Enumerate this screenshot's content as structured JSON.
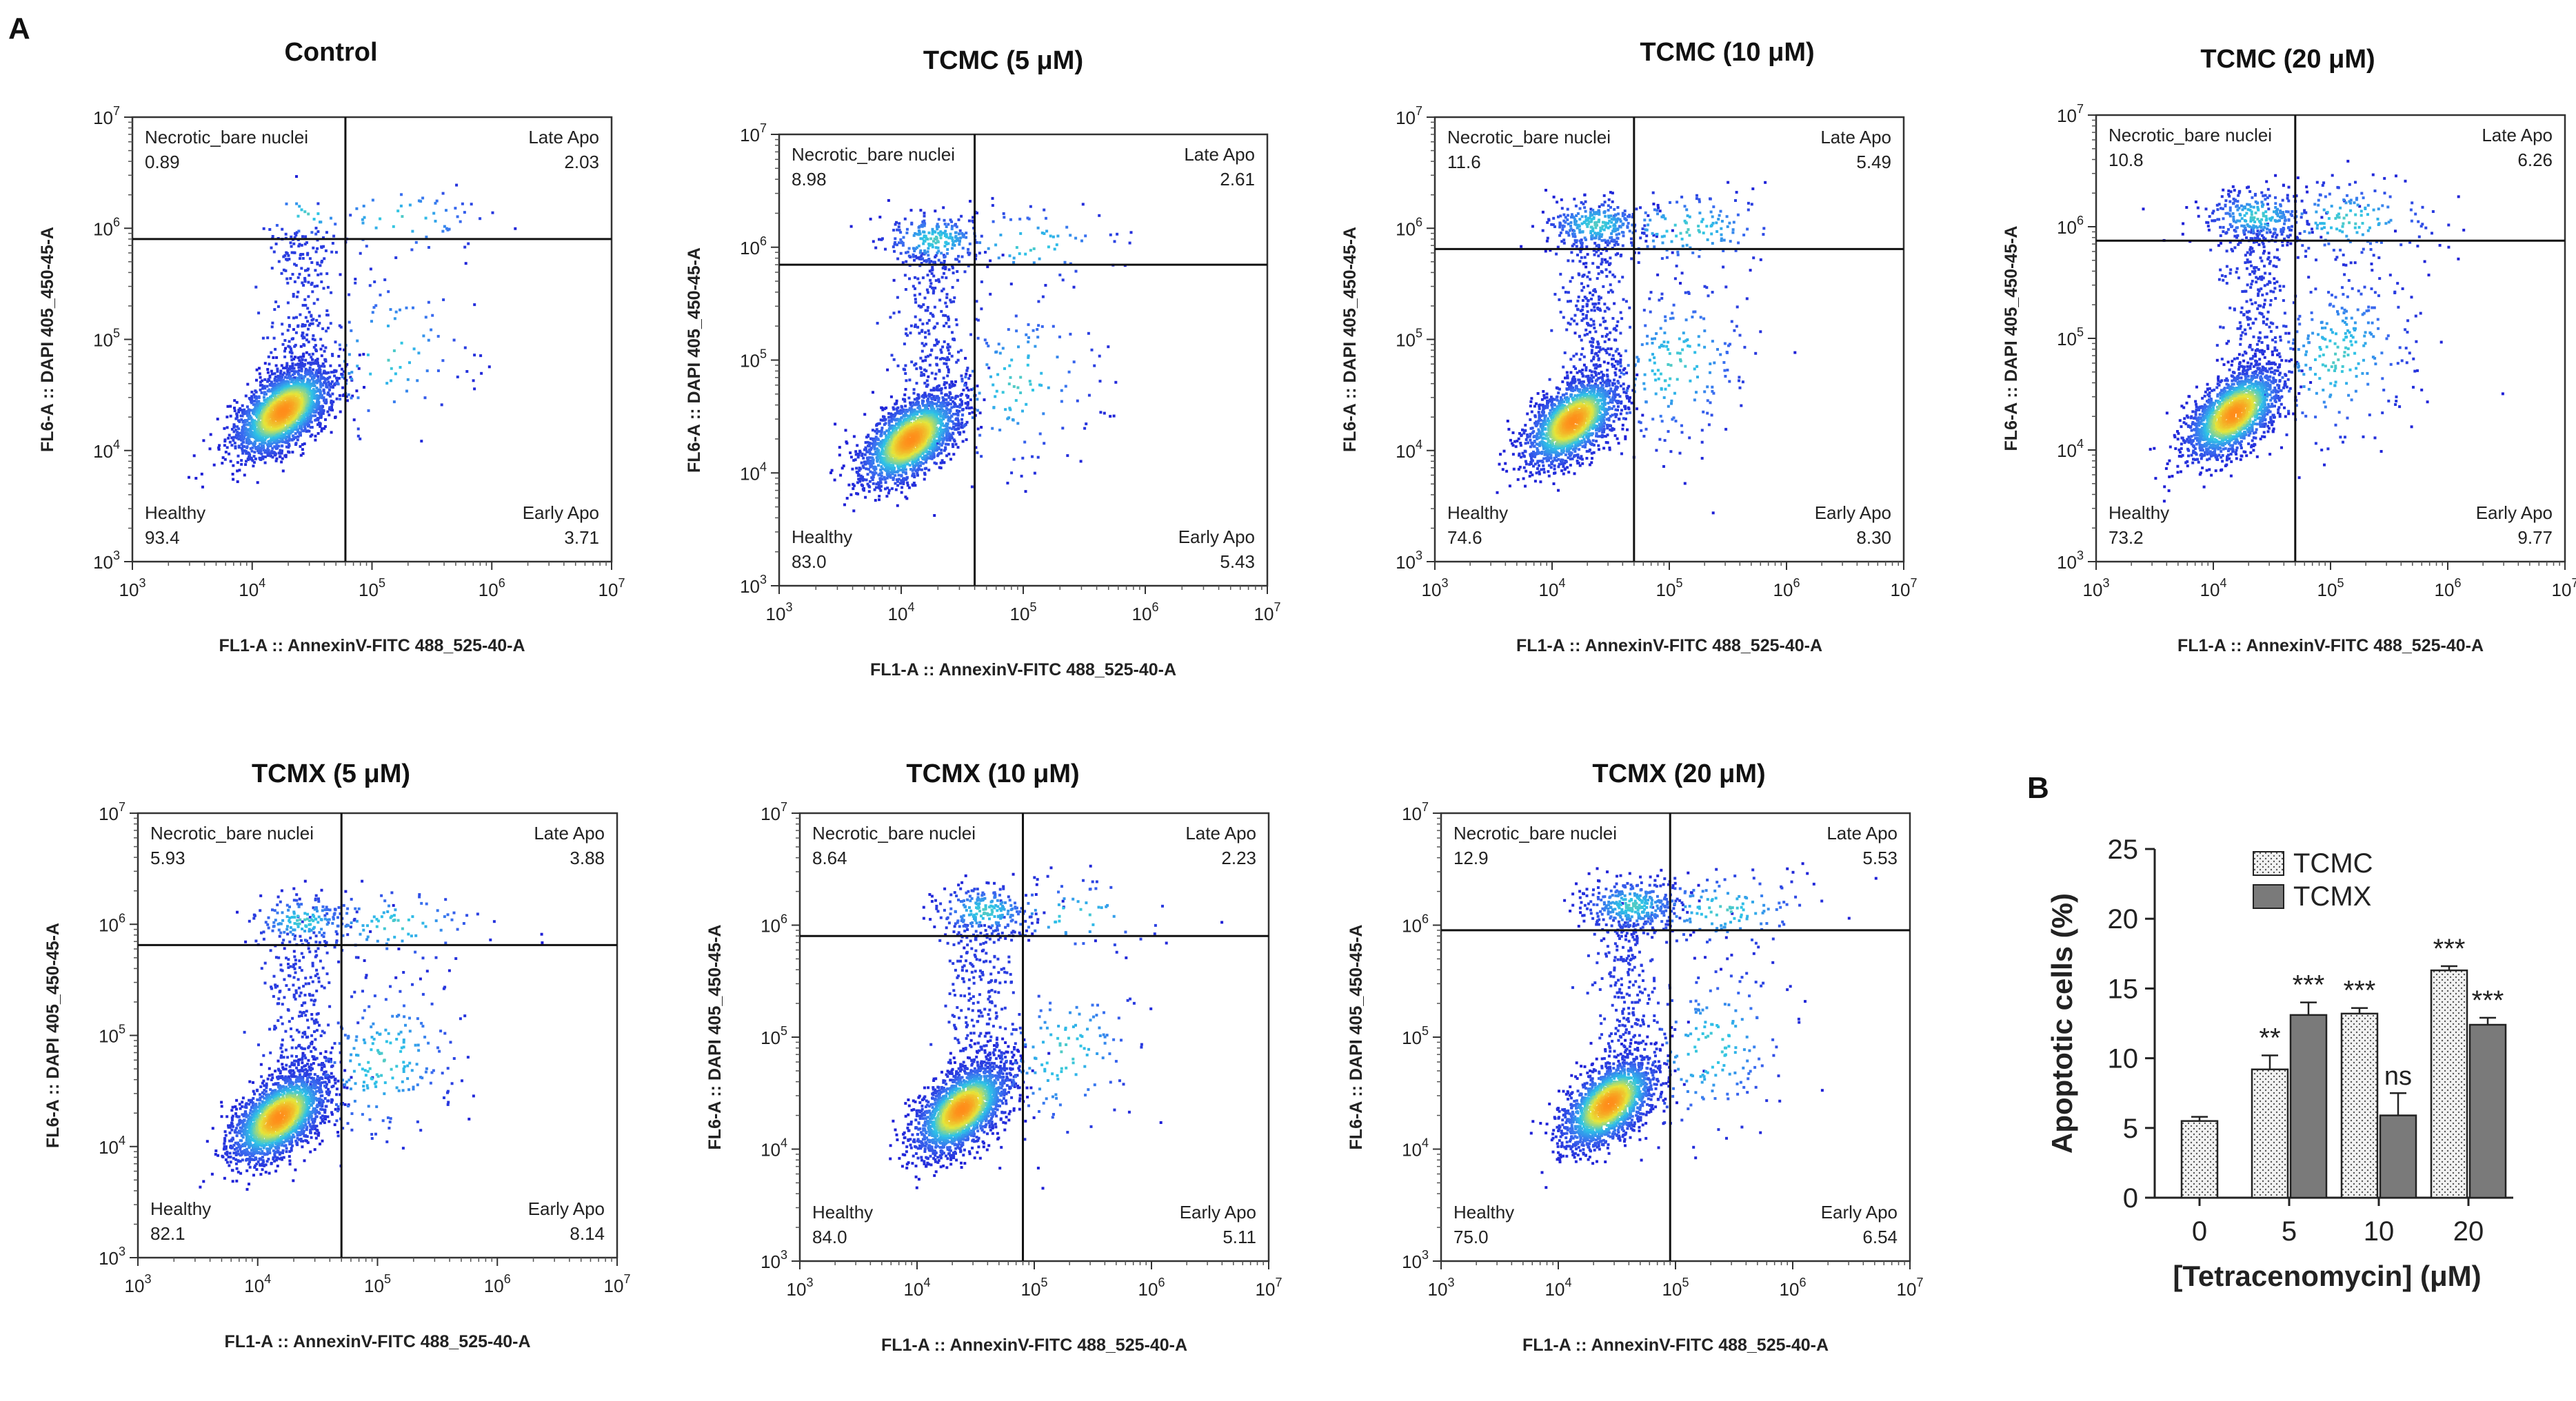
{
  "panel_a_letter": "A",
  "panel_b_letter": "B",
  "colors": {
    "density_low": "#1f1fd6",
    "density_mid": "#2ec4e6",
    "density_high": "#e6e63a",
    "density_peak": "#ff8c1a",
    "tcmc_bar": "#f2f2f2",
    "tcmx_bar": "#7a7a7a"
  },
  "chart_data": [
    {
      "type": "scatter",
      "title": "Control",
      "xlabel": "FL1-A :: AnnexinV-FITC 488_525-40-A",
      "ylabel": "FL6-A :: DAPI 405_450-45-A",
      "scale": "log",
      "xlim": [
        1000,
        10000000
      ],
      "ylim": [
        1000,
        10000000
      ],
      "gate": {
        "x": 60000,
        "y": 800000
      },
      "quadrants": [
        {
          "name": "Necrotic_bare nuclei",
          "value": "0.89"
        },
        {
          "name": "Late Apo",
          "value": "2.03"
        },
        {
          "name": "Healthy",
          "value": "93.4"
        },
        {
          "name": "Early Apo",
          "value": "3.71"
        }
      ]
    },
    {
      "type": "scatter",
      "title": "TCMC (5 μM)",
      "xlabel": "FL1-A :: AnnexinV-FITC 488_525-40-A",
      "ylabel": "FL6-A :: DAPI 405_450-45-A",
      "scale": "log",
      "xlim": [
        1000,
        10000000
      ],
      "ylim": [
        1000,
        10000000
      ],
      "gate": {
        "x": 40000,
        "y": 700000
      },
      "quadrants": [
        {
          "name": "Necrotic_bare nuclei",
          "value": "8.98"
        },
        {
          "name": "Late Apo",
          "value": "2.61"
        },
        {
          "name": "Healthy",
          "value": "83.0"
        },
        {
          "name": "Early Apo",
          "value": "5.43"
        }
      ]
    },
    {
      "type": "scatter",
      "title": "TCMC (10 μM)",
      "xlabel": "FL1-A :: AnnexinV-FITC 488_525-40-A",
      "ylabel": "FL6-A :: DAPI 405_450-45-A",
      "scale": "log",
      "xlim": [
        1000,
        10000000
      ],
      "ylim": [
        1000,
        10000000
      ],
      "gate": {
        "x": 50000,
        "y": 650000
      },
      "quadrants": [
        {
          "name": "Necrotic_bare nuclei",
          "value": "11.6"
        },
        {
          "name": "Late Apo",
          "value": "5.49"
        },
        {
          "name": "Healthy",
          "value": "74.6"
        },
        {
          "name": "Early Apo",
          "value": "8.30"
        }
      ]
    },
    {
      "type": "scatter",
      "title": "TCMC (20 μM)",
      "xlabel": "FL1-A :: AnnexinV-FITC 488_525-40-A",
      "ylabel": "FL6-A :: DAPI 405_450-45-A",
      "scale": "log",
      "xlim": [
        1000,
        10000000
      ],
      "ylim": [
        1000,
        10000000
      ],
      "gate": {
        "x": 50000,
        "y": 750000
      },
      "quadrants": [
        {
          "name": "Necrotic_bare nuclei",
          "value": "10.8"
        },
        {
          "name": "Late Apo",
          "value": "6.26"
        },
        {
          "name": "Healthy",
          "value": "73.2"
        },
        {
          "name": "Early Apo",
          "value": "9.77"
        }
      ]
    },
    {
      "type": "scatter",
      "title": "TCMX (5 μM)",
      "xlabel": "FL1-A :: AnnexinV-FITC 488_525-40-A",
      "ylabel": "FL6-A :: DAPI 405_450-45-A",
      "scale": "log",
      "xlim": [
        1000,
        10000000
      ],
      "ylim": [
        1000,
        10000000
      ],
      "gate": {
        "x": 50000,
        "y": 650000
      },
      "quadrants": [
        {
          "name": "Necrotic_bare nuclei",
          "value": "5.93"
        },
        {
          "name": "Late Apo",
          "value": "3.88"
        },
        {
          "name": "Healthy",
          "value": "82.1"
        },
        {
          "name": "Early Apo",
          "value": "8.14"
        }
      ]
    },
    {
      "type": "scatter",
      "title": "TCMX (10 μM)",
      "xlabel": "FL1-A :: AnnexinV-FITC 488_525-40-A",
      "ylabel": "FL6-A :: DAPI 405_450-45-A",
      "scale": "log",
      "xlim": [
        1000,
        10000000
      ],
      "ylim": [
        1000,
        10000000
      ],
      "gate": {
        "x": 80000,
        "y": 800000
      },
      "quadrants": [
        {
          "name": "Necrotic_bare nuclei",
          "value": "8.64"
        },
        {
          "name": "Late Apo",
          "value": "2.23"
        },
        {
          "name": "Healthy",
          "value": "84.0"
        },
        {
          "name": "Early Apo",
          "value": "5.11"
        }
      ]
    },
    {
      "type": "scatter",
      "title": "TCMX (20 μM)",
      "xlabel": "FL1-A :: AnnexinV-FITC 488_525-40-A",
      "ylabel": "FL6-A :: DAPI 405_450-45-A",
      "scale": "log",
      "xlim": [
        1000,
        10000000
      ],
      "ylim": [
        1000,
        10000000
      ],
      "gate": {
        "x": 90000,
        "y": 900000
      },
      "quadrants": [
        {
          "name": "Necrotic_bare nuclei",
          "value": "12.9"
        },
        {
          "name": "Late Apo",
          "value": "5.53"
        },
        {
          "name": "Healthy",
          "value": "75.0"
        },
        {
          "name": "Early Apo",
          "value": "6.54"
        }
      ]
    },
    {
      "type": "bar",
      "title": "",
      "xlabel": "[Tetracenomycin] (μM)",
      "ylabel": "Apoptotic cells (%)",
      "categories": [
        "0",
        "5",
        "10",
        "20"
      ],
      "ylim": [
        0,
        25
      ],
      "yticks": [
        "0",
        "5",
        "10",
        "15",
        "20",
        "25"
      ],
      "legend_position": "top-right",
      "series": [
        {
          "name": "TCMC",
          "values": [
            5.5,
            9.2,
            13.2,
            16.3
          ],
          "errors": [
            0.3,
            1.0,
            0.4,
            0.3
          ],
          "significance": [
            "",
            "**",
            "***",
            "***"
          ]
        },
        {
          "name": "TCMX",
          "values": [
            null,
            13.1,
            5.9,
            12.4
          ],
          "errors": [
            null,
            0.9,
            1.6,
            0.5
          ],
          "significance": [
            "",
            "***",
            "ns",
            "***"
          ]
        }
      ]
    }
  ]
}
